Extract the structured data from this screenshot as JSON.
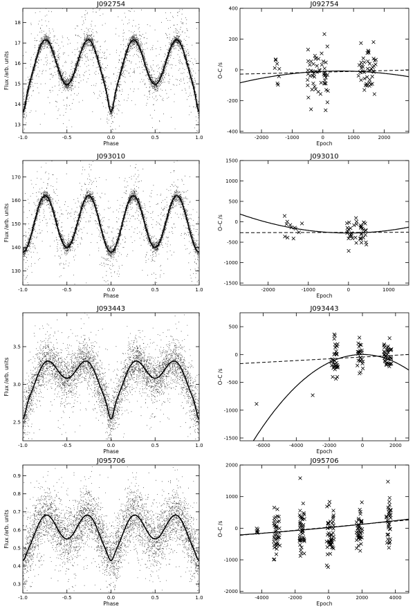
{
  "chart_data": [
    {
      "type": "scatter",
      "kind": "lightcurve",
      "title": "J092754",
      "xlabel": "Phase",
      "ylabel": "Flux /arb. units",
      "xlim": [
        -1.0,
        1.0
      ],
      "ylim": [
        12.6,
        18.7
      ],
      "xticks": [
        -1.0,
        -0.5,
        0.0,
        0.5,
        1.0
      ],
      "xtick_labels": [
        "-1.0",
        "-0.5",
        "0.0",
        "0.5",
        "1.0"
      ],
      "yticks": [
        13,
        14,
        15,
        16,
        17,
        18
      ],
      "ytick_labels": [
        "13",
        "14",
        "15",
        "16",
        "17",
        "18"
      ],
      "curve": {
        "mean": 15.95,
        "amp1": -0.22,
        "amp2": -1.2,
        "min_phase0_extra": -0.9,
        "scatter": 0.25,
        "outlier_scatter": 1.4
      }
    },
    {
      "type": "scatter",
      "kind": "oc",
      "title": "J092754",
      "xlabel": "Epoch",
      "ylabel": "O–C /s",
      "xlim": [
        -2700,
        2800
      ],
      "ylim": [
        -410,
        400
      ],
      "xticks": [
        -2000,
        -1000,
        0,
        1000,
        2000
      ],
      "xtick_labels": [
        "-2000",
        "-1000",
        "0",
        "1000",
        "2000"
      ],
      "yticks": [
        -400,
        -200,
        0,
        200,
        400
      ],
      "ytick_labels": [
        "-400",
        "-200",
        "0",
        "200",
        "400"
      ],
      "clusters": [
        {
          "center": -1500,
          "spread": 80,
          "n": 8,
          "y_mean": -30,
          "y_sd": 50
        },
        {
          "center": -150,
          "spread": 350,
          "n": 55,
          "y_mean": -20,
          "y_sd": 85
        },
        {
          "center": 1450,
          "spread": 300,
          "n": 45,
          "y_mean": 0,
          "y_sd": 75
        }
      ],
      "fit_quadratic": {
        "a": -7.26e-06,
        "b": 0.008,
        "c": -10
      },
      "fit_linear": {
        "m": 0.0048,
        "c": -15
      }
    },
    {
      "type": "scatter",
      "kind": "lightcurve",
      "title": "J093010",
      "xlabel": "Phase",
      "ylabel": "Flux /arb. units",
      "xlim": [
        -1.0,
        1.0
      ],
      "ylim": [
        124,
        177
      ],
      "xticks": [
        -1.0,
        -0.5,
        0.0,
        0.5,
        1.0
      ],
      "xtick_labels": [
        "-1.0",
        "-0.5",
        "0.0",
        "0.5",
        "1.0"
      ],
      "yticks": [
        130,
        140,
        150,
        160,
        170
      ],
      "ytick_labels": [
        "130",
        "140",
        "150",
        "160",
        "170"
      ],
      "curve": {
        "mean": 150.5,
        "amp1": -1.0,
        "amp2": -11.5,
        "min_phase0_extra": 0,
        "scatter": 2.0,
        "outlier_scatter": 11
      }
    },
    {
      "type": "scatter",
      "kind": "oc",
      "title": "J093010",
      "xlabel": "Epoch",
      "ylabel": "O–C /s",
      "xlim": [
        -2700,
        1500
      ],
      "ylim": [
        -1550,
        1500
      ],
      "xticks": [
        -2000,
        -1000,
        0,
        1000
      ],
      "xtick_labels": [
        "-2000",
        "-1000",
        "0",
        "1000"
      ],
      "yticks": [
        -1500,
        -1000,
        -500,
        0,
        500,
        1000,
        1500
      ],
      "ytick_labels": [
        "-1500",
        "-1000",
        "-500",
        "0",
        "500",
        "1000",
        "1500"
      ],
      "clusters": [
        {
          "center": -1350,
          "spread": 250,
          "n": 12,
          "y_mean": -200,
          "y_sd": 180
        },
        {
          "center": 200,
          "spread": 250,
          "n": 42,
          "y_mean": -250,
          "y_sd": 230
        }
      ],
      "fit_quadratic": {
        "a": 6.37e-05,
        "b": 0.0,
        "c": -275
      },
      "fit_linear": {
        "m": 0.0025,
        "c": -260
      }
    },
    {
      "type": "scatter",
      "kind": "lightcurve",
      "title": "J093443",
      "xlabel": "Phase",
      "ylabel": "Flux /arb. units",
      "xlim": [
        -1.0,
        1.0
      ],
      "ylim": [
        2.25,
        3.95
      ],
      "xticks": [
        -1.0,
        -0.5,
        0.0,
        0.5,
        1.0
      ],
      "xtick_labels": [
        "-1.0",
        "-0.5",
        "0.0",
        "0.5",
        "1.0"
      ],
      "yticks": [
        2.5,
        3.0,
        3.5
      ],
      "ytick_labels": [
        "2.5",
        "3.0",
        "3.5"
      ],
      "curve": {
        "mean": 3.1,
        "amp1": -0.17,
        "amp2": -0.19,
        "min_phase0_extra": -0.2,
        "scatter": 0.22,
        "outlier_scatter": 0.35
      }
    },
    {
      "type": "scatter",
      "kind": "oc",
      "title": "J093443",
      "xlabel": "Epoch",
      "ylabel": "O–C /s",
      "xlim": [
        -7400,
        2800
      ],
      "ylim": [
        -1550,
        750
      ],
      "xticks": [
        -6000,
        -4000,
        -2000,
        0,
        2000
      ],
      "xtick_labels": [
        "-6000",
        "-4000",
        "-2000",
        "0",
        "2000"
      ],
      "yticks": [
        -1500,
        -1000,
        -500,
        0,
        500
      ],
      "ytick_labels": [
        "-1500",
        "-1000",
        "-500",
        "0",
        "500"
      ],
      "clusters": [
        {
          "center": -6400,
          "spread": 10,
          "n": 1,
          "y_mean": -890,
          "y_sd": 5
        },
        {
          "center": -3000,
          "spread": 10,
          "n": 1,
          "y_mean": -740,
          "y_sd": 5
        },
        {
          "center": -1700,
          "spread": 220,
          "n": 35,
          "y_mean": -120,
          "y_sd": 180
        },
        {
          "center": -150,
          "spread": 200,
          "n": 25,
          "y_mean": 0,
          "y_sd": 170
        },
        {
          "center": 1500,
          "spread": 250,
          "n": 40,
          "y_mean": -30,
          "y_sd": 130
        }
      ],
      "fit_quadratic": {
        "a": -3.57e-05,
        "b": 0.0,
        "c": 0
      },
      "fit_linear": {
        "m": 0.016,
        "c": -45
      }
    },
    {
      "type": "scatter",
      "kind": "lightcurve",
      "title": "J095706",
      "xlabel": "Phase",
      "ylabel": "Flux /arb. units",
      "xlim": [
        -1.0,
        1.0
      ],
      "ylim": [
        0.25,
        0.96
      ],
      "xticks": [
        -1.0,
        -0.5,
        0.0,
        0.5,
        1.0
      ],
      "xtick_labels": [
        "-1.0",
        "-0.5",
        "0.0",
        "0.5",
        "1.0"
      ],
      "yticks": [
        0.3,
        0.4,
        0.5,
        0.6,
        0.7,
        0.8,
        0.9
      ],
      "ytick_labels": [
        "0.3",
        "0.4",
        "0.5",
        "0.6",
        "0.7",
        "0.8",
        "0.9"
      ],
      "curve": {
        "mean": 0.595,
        "amp1": -0.04,
        "amp2": -0.085,
        "min_phase0_extra": -0.04,
        "scatter": 0.12,
        "outlier_scatter": 0.15
      }
    },
    {
      "type": "scatter",
      "kind": "oc",
      "title": "J095706",
      "xlabel": "Epoch",
      "ylabel": "O–C /s",
      "xlim": [
        -5300,
        4800
      ],
      "ylim": [
        -2050,
        2000
      ],
      "xticks": [
        -4000,
        -2000,
        0,
        2000,
        4000
      ],
      "xtick_labels": [
        "-4000",
        "-2000",
        "0",
        "2000",
        "4000"
      ],
      "yticks": [
        -2000,
        -1000,
        0,
        1000,
        2000
      ],
      "ytick_labels": [
        "-2000",
        "-1000",
        "0",
        "1000",
        "2000"
      ],
      "clusters": [
        {
          "center": -4300,
          "spread": 90,
          "n": 6,
          "y_mean": -100,
          "y_sd": 80
        },
        {
          "center": -3100,
          "spread": 180,
          "n": 40,
          "y_mean": -150,
          "y_sd": 380
        },
        {
          "center": -1600,
          "spread": 160,
          "n": 45,
          "y_mean": -50,
          "y_sd": 420
        },
        {
          "center": 100,
          "spread": 220,
          "n": 50,
          "y_mean": 0,
          "y_sd": 420
        },
        {
          "center": 1850,
          "spread": 180,
          "n": 40,
          "y_mean": 100,
          "y_sd": 380
        },
        {
          "center": 3600,
          "spread": 140,
          "n": 35,
          "y_mean": 180,
          "y_sd": 380
        }
      ],
      "fit_quadratic": {
        "a": 1.2e-06,
        "b": 0.05,
        "c": 20
      },
      "fit_linear": {
        "m": 0.048,
        "c": 30
      }
    }
  ]
}
